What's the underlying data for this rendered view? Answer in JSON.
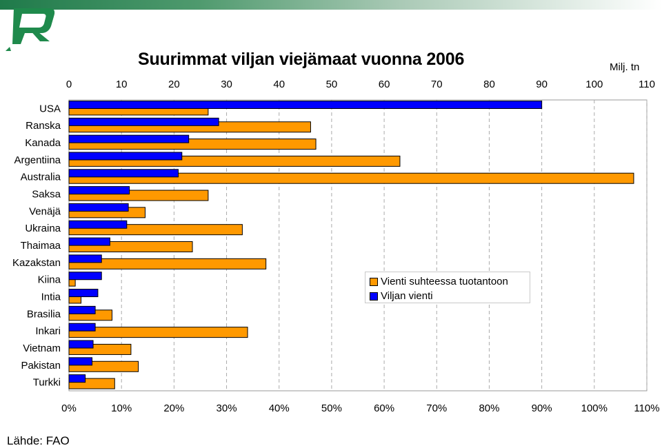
{
  "title": "Suurimmat viljan viejämaat vuonna 2006",
  "unit_label": "Milj. tn",
  "source": "Lähde: FAO",
  "colors": {
    "orange": "#FF9900",
    "blue": "#0000FF"
  },
  "chart_data": {
    "type": "bar",
    "orientation": "horizontal",
    "categories": [
      "USA",
      "Ranska",
      "Kanada",
      "Argentiina",
      "Australia",
      "Saksa",
      "Venäjä",
      "Ukraina",
      "Thaimaa",
      "Kazakstan",
      "Kiina",
      "Intia",
      "Brasilia",
      "Inkari",
      "Vietnam",
      "Pakistan",
      "Turkki"
    ],
    "series": [
      {
        "name": "Vienti suhteessa tuotantoon",
        "axis": "bottom",
        "color": "#FF9900",
        "values": [
          26.5,
          46,
          47,
          63,
          107.5,
          26.5,
          14.5,
          33,
          23.5,
          37.5,
          1.2,
          2.3,
          8.2,
          34,
          11.8,
          13.2,
          8.7
        ]
      },
      {
        "name": "Viljan vienti",
        "axis": "top",
        "color": "#0000FF",
        "values": [
          90,
          28.5,
          22.8,
          21.5,
          20.8,
          11.5,
          11.3,
          11,
          7.8,
          6.2,
          6.2,
          5.5,
          5,
          5,
          4.6,
          4.4,
          3.1
        ]
      }
    ],
    "x_top": {
      "label": "Milj. tn",
      "range": [
        0,
        110
      ],
      "ticks": [
        "0",
        "10",
        "20",
        "30",
        "40",
        "50",
        "60",
        "70",
        "80",
        "90",
        "100",
        "110"
      ]
    },
    "x_bottom": {
      "range": [
        0,
        110
      ],
      "ticks": [
        "0%",
        "10%",
        "20%",
        "30%",
        "40%",
        "50%",
        "60%",
        "70%",
        "80%",
        "90%",
        "100%",
        "110%"
      ]
    },
    "grid": "vertical-dashed",
    "legend_position": "right-middle"
  }
}
